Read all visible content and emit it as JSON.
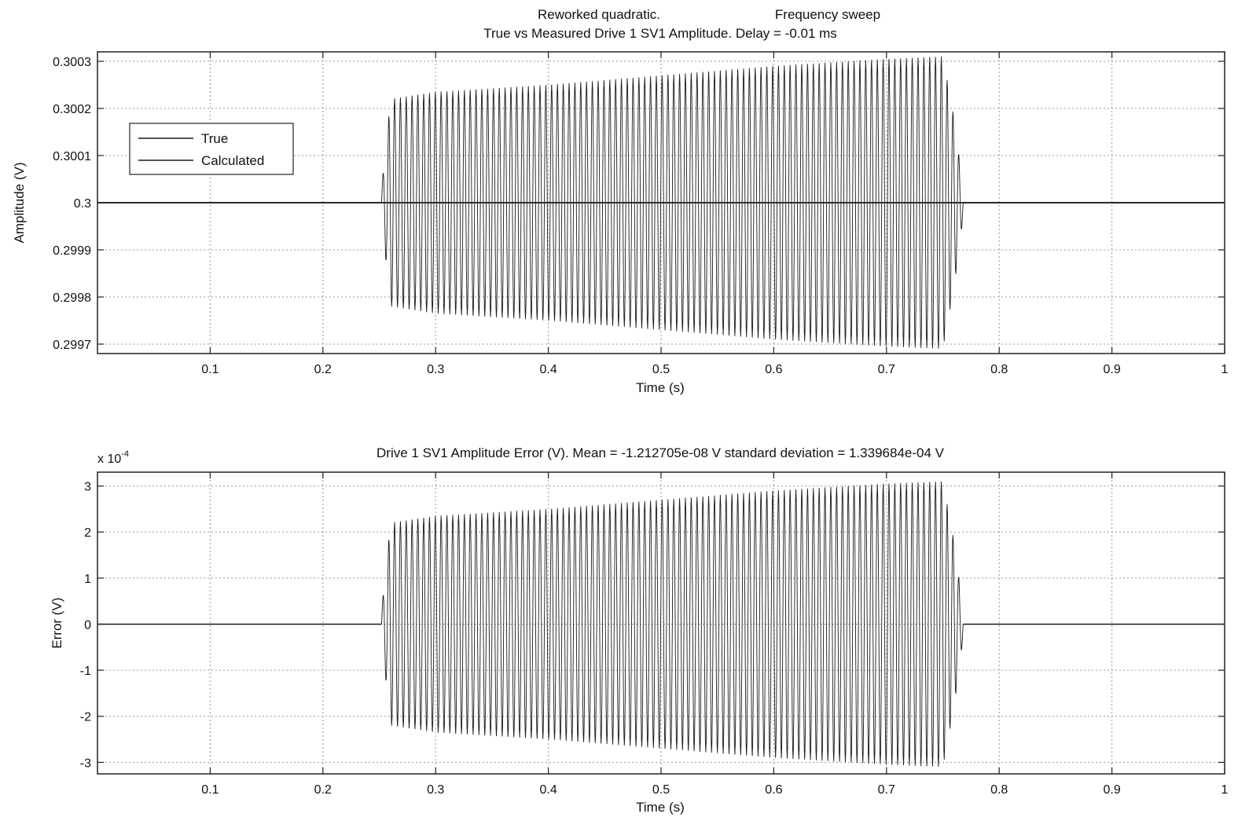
{
  "figure": {
    "title_line1_left": "Reworked quadratic.",
    "title_line1_right": "Frequency sweep"
  },
  "chart_data": [
    {
      "type": "line",
      "title": "True vs Measured Drive 1 SV1 Amplitude. Delay = -0.01 ms",
      "xlabel": "Time (s)",
      "ylabel": "Amplitude (V)",
      "xlim": [
        0,
        1
      ],
      "ylim": [
        0.29968,
        0.30032
      ],
      "xticks": [
        0.1,
        0.2,
        0.3,
        0.4,
        0.5,
        0.6,
        0.7,
        0.8,
        0.9,
        1
      ],
      "xtick_labels": [
        "0.1",
        "0.2",
        "0.3",
        "0.4",
        "0.5",
        "0.6",
        "0.7",
        "0.8",
        "0.9",
        "1"
      ],
      "yticks": [
        0.2997,
        0.2998,
        0.2999,
        0.3,
        0.3001,
        0.3002,
        0.3003
      ],
      "ytick_labels": [
        "0.2997",
        "0.2998",
        "0.2999",
        "0.3",
        "0.3001",
        "0.3002",
        "0.3003"
      ],
      "grid": true,
      "legend_position": "upper-left",
      "colors": {
        "line": "#1a1a1a",
        "grid": "#9a9a9a",
        "axes": "#222222"
      },
      "series": [
        {
          "name": "True",
          "constant": 0.3,
          "x_range": [
            0,
            1
          ]
        },
        {
          "name": "Calculated",
          "baseline": 0.3,
          "oscillation": {
            "x_start": 0.252,
            "x_end": 0.768,
            "cycles": 100,
            "envelope_x": [
              0.252,
              0.26,
              0.3,
              0.4,
              0.5,
              0.6,
              0.7,
              0.75,
              0.76,
              0.768
            ],
            "envelope_amplitude": [
              3e-05,
              0.00022,
              0.000235,
              0.00025,
              0.00027,
              0.00029,
              0.000305,
              0.00031,
              0.00018,
              3e-05
            ]
          }
        }
      ]
    },
    {
      "type": "line",
      "title": "Drive 1 SV1 Amplitude Error (V). Mean = -1.212705e-08 V standard deviation = 1.339684e-04 V",
      "xlabel": "Time (s)",
      "ylabel": "Error (V)",
      "y_multiplier": "x 10",
      "y_multiplier_exponent": "-4",
      "xlim": [
        0,
        1
      ],
      "ylim": [
        -3.25,
        3.3
      ],
      "xticks": [
        0.1,
        0.2,
        0.3,
        0.4,
        0.5,
        0.6,
        0.7,
        0.8,
        0.9,
        1
      ],
      "xtick_labels": [
        "0.1",
        "0.2",
        "0.3",
        "0.4",
        "0.5",
        "0.6",
        "0.7",
        "0.8",
        "0.9",
        "1"
      ],
      "yticks": [
        -3,
        -2,
        -1,
        0,
        1,
        2,
        3
      ],
      "ytick_labels": [
        "-3",
        "-2",
        "-1",
        "0",
        "1",
        "2",
        "3"
      ],
      "grid": true,
      "colors": {
        "line": "#1a1a1a",
        "grid": "#9a9a9a",
        "axes": "#222222"
      },
      "series": [
        {
          "baseline": 0,
          "oscillation": {
            "x_start": 0.252,
            "x_end": 0.768,
            "cycles": 100,
            "envelope_x": [
              0.252,
              0.26,
              0.3,
              0.4,
              0.5,
              0.6,
              0.7,
              0.75,
              0.76,
              0.768
            ],
            "envelope_amplitude": [
              0.3,
              2.2,
              2.35,
              2.5,
              2.7,
              2.9,
              3.05,
              3.1,
              1.8,
              0.3
            ]
          }
        }
      ]
    }
  ]
}
